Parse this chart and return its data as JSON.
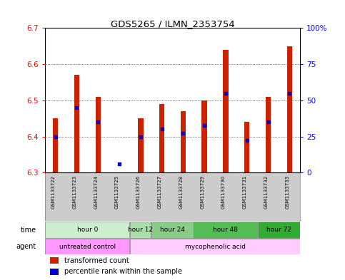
{
  "title": "GDS5265 / ILMN_2353754",
  "samples": [
    "GSM1133722",
    "GSM1133723",
    "GSM1133724",
    "GSM1133725",
    "GSM1133726",
    "GSM1133727",
    "GSM1133728",
    "GSM1133729",
    "GSM1133730",
    "GSM1133731",
    "GSM1133732",
    "GSM1133733"
  ],
  "bar_bottoms": [
    6.3,
    6.3,
    6.3,
    6.3,
    6.3,
    6.3,
    6.3,
    6.3,
    6.3,
    6.3,
    6.3,
    6.3
  ],
  "bar_tops": [
    6.45,
    6.57,
    6.51,
    6.3,
    6.45,
    6.49,
    6.47,
    6.5,
    6.64,
    6.44,
    6.51,
    6.65
  ],
  "blue_dots": [
    6.4,
    6.48,
    6.44,
    6.325,
    6.4,
    6.42,
    6.41,
    6.43,
    6.52,
    6.39,
    6.44,
    6.52
  ],
  "ylim": [
    6.3,
    6.7
  ],
  "yticks_left": [
    6.3,
    6.4,
    6.5,
    6.6,
    6.7
  ],
  "yticks_right_pct": [
    0,
    25,
    50,
    75,
    100
  ],
  "bar_color": "#CC2200",
  "blue_color": "#0000CC",
  "bar_width": 0.25,
  "time_groups": [
    {
      "label": "hour 0",
      "start": 0,
      "end": 4,
      "color": "#CCEECC"
    },
    {
      "label": "hour 12",
      "start": 4,
      "end": 5,
      "color": "#AADDAA"
    },
    {
      "label": "hour 24",
      "start": 5,
      "end": 7,
      "color": "#88CC88"
    },
    {
      "label": "hour 48",
      "start": 7,
      "end": 10,
      "color": "#55BB55"
    },
    {
      "label": "hour 72",
      "start": 10,
      "end": 12,
      "color": "#33AA33"
    }
  ],
  "agent_groups": [
    {
      "label": "untreated control",
      "start": 0,
      "end": 4,
      "color": "#FF99FF"
    },
    {
      "label": "mycophenolic acid",
      "start": 4,
      "end": 12,
      "color": "#FFCCFF"
    }
  ],
  "sample_bg_color": "#CCCCCC",
  "plot_bg_color": "#FFFFFF"
}
